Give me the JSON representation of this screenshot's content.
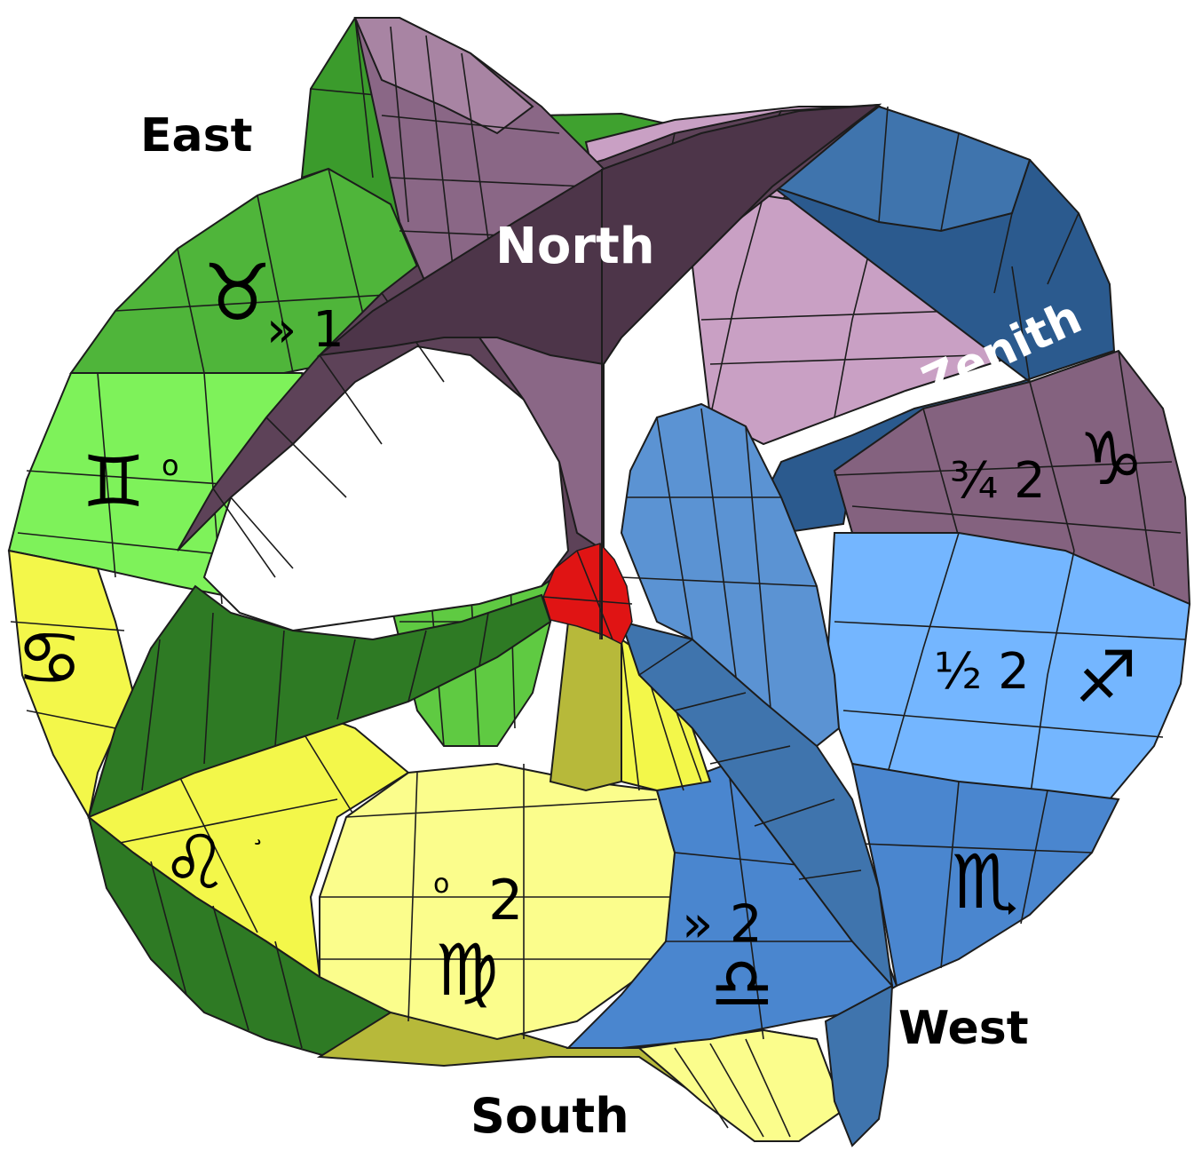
{
  "labels": {
    "east": "East",
    "north": "North",
    "zenith": "Zenith",
    "west": "West",
    "south": "South"
  },
  "signs": {
    "taurus": "♉",
    "gemini": "♊",
    "cancer": "♋",
    "leo": "♌",
    "virgo": "♍",
    "libra": "♎",
    "scorpio": "♏",
    "sagittarius": "♐",
    "capricorn": "♑"
  },
  "annotations": {
    "taurus_mark": "» 1",
    "gemini_mark": "o",
    "leo_mark": "¸",
    "virgo_mark_o": "o",
    "virgo_mark_2": "2",
    "libra_mark": "» 2",
    "sagittarius_mark": "½ 2",
    "capricorn_mark": "¾ 2"
  },
  "colors": {
    "dark_green": "#2e7a24",
    "green": "#4fb53a",
    "light_green": "#7ef25a",
    "yellow": "#f3f74a",
    "pale_yellow": "#fbfd8c",
    "olive": "#b7b93a",
    "mauve": "#84627f",
    "dark_mauve": "#4d3549",
    "pink": "#c9a0c4",
    "blue": "#4a86cf",
    "light_blue": "#74b6ff",
    "dark_blue": "#2b5a8e",
    "red": "#e01414"
  }
}
